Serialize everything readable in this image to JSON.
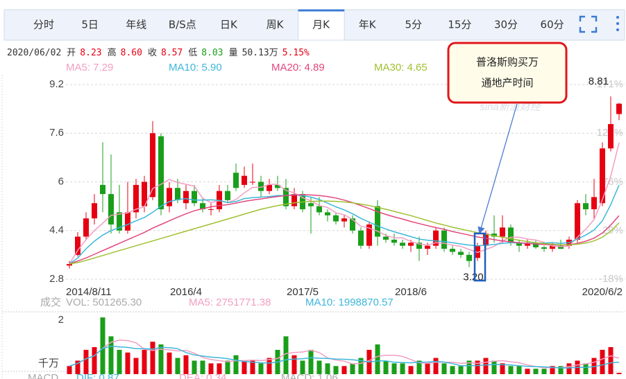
{
  "tabs": [
    {
      "label": "分时"
    },
    {
      "label": "5日"
    },
    {
      "label": "年线"
    },
    {
      "label": "B/S点"
    },
    {
      "label": "日K"
    },
    {
      "label": "周K"
    },
    {
      "label": "月K",
      "selected": true
    },
    {
      "label": "年K"
    },
    {
      "label": "5分"
    },
    {
      "label": "15分"
    },
    {
      "label": "30分"
    },
    {
      "label": "60分"
    }
  ],
  "info": {
    "date": "2020/06/02",
    "fields": [
      {
        "label": "开",
        "value": "8.23",
        "color": "#e60012"
      },
      {
        "label": "高",
        "value": "8.60",
        "color": "#e60012"
      },
      {
        "label": "收",
        "value": "8.57",
        "color": "#e60012"
      },
      {
        "label": "低",
        "value": "8.03",
        "color": "#1a9e1a"
      },
      {
        "label": "量",
        "value": "50.13万",
        "color": "#333333"
      },
      {
        "value": "5.15%",
        "color": "#e60012"
      }
    ]
  },
  "annotation": {
    "lines": [
      "普洛斯购买万",
      "通地产时间"
    ]
  },
  "macd_legend": [
    {
      "text": "MACD",
      "color": "#aaaaaa"
    },
    {
      "text": "DIF: 0.87",
      "color": "#3cb7d9"
    },
    {
      "text": "DEA: 0.34",
      "color": "#f19ec2"
    },
    {
      "text": "MACD: 1.06",
      "color": "#aaaaaa"
    }
  ],
  "chart_data": [
    {
      "type": "candlestick",
      "categories": [
        "2014/8/11",
        null,
        null,
        null,
        null,
        null,
        null,
        null,
        null,
        null,
        null,
        null,
        null,
        null,
        "2016/4",
        null,
        null,
        null,
        null,
        null,
        null,
        null,
        null,
        null,
        null,
        null,
        null,
        null,
        "2017/5",
        null,
        null,
        null,
        null,
        null,
        null,
        null,
        null,
        null,
        null,
        null,
        null,
        "2018/6",
        null,
        null,
        null,
        null,
        null,
        null,
        null,
        null,
        null,
        null,
        null,
        null,
        null,
        null,
        null,
        null,
        null,
        null,
        null,
        null,
        null,
        null,
        null,
        null,
        "2020/6/2"
      ],
      "open": [
        3.25,
        3.6,
        4.2,
        4.8,
        5.9,
        5.6,
        5.0,
        4.4,
        5.0,
        5.2,
        5.5,
        7.5,
        5.2,
        5.8,
        5.3,
        5.7,
        5.3,
        5.1,
        5.1,
        5.7,
        6.3,
        5.9,
        6.0,
        6.0,
        5.7,
        5.9,
        5.8,
        5.2,
        5.6,
        5.3,
        5.2,
        5.0,
        4.9,
        4.7,
        4.8,
        4.4,
        3.9,
        5.2,
        4.2,
        4.1,
        4.0,
        3.9,
        4.0,
        3.8,
        3.9,
        4.4,
        3.8,
        3.7,
        3.6,
        3.5,
        3.9,
        4.3,
        4.2,
        4.5,
        4.0,
        3.9,
        4.0,
        3.85,
        3.8,
        3.9,
        3.9,
        4.1,
        5.3,
        5.1,
        5.3,
        7.1,
        8.23
      ],
      "high": [
        3.4,
        4.35,
        5.0,
        5.6,
        7.3,
        6.9,
        5.9,
        6.0,
        6.1,
        6.2,
        8.0,
        7.6,
        6.0,
        6.1,
        5.9,
        5.9,
        5.5,
        5.3,
        5.9,
        5.9,
        6.6,
        6.5,
        6.6,
        6.2,
        6.1,
        6.2,
        6.1,
        5.8,
        5.7,
        5.5,
        5.5,
        5.1,
        5.0,
        4.9,
        4.9,
        4.5,
        4.7,
        5.4,
        4.3,
        4.3,
        4.1,
        4.1,
        4.2,
        4.0,
        4.5,
        4.5,
        3.9,
        3.8,
        3.7,
        4.0,
        4.4,
        4.9,
        4.9,
        4.6,
        4.1,
        4.1,
        4.1,
        3.9,
        4.0,
        4.1,
        4.2,
        5.4,
        5.6,
        6.1,
        7.3,
        8.81,
        8.6
      ],
      "low": [
        3.15,
        3.55,
        4.1,
        4.6,
        5.0,
        4.3,
        4.3,
        4.3,
        4.8,
        5.0,
        5.4,
        4.9,
        5.0,
        5.3,
        5.1,
        5.2,
        5.0,
        4.9,
        5.0,
        5.3,
        5.7,
        5.8,
        5.9,
        5.5,
        5.6,
        5.7,
        5.1,
        5.1,
        5.0,
        4.3,
        4.9,
        4.7,
        4.6,
        4.5,
        4.3,
        3.8,
        3.8,
        3.9,
        4.0,
        3.9,
        3.8,
        3.7,
        3.4,
        3.6,
        3.8,
        3.7,
        3.6,
        3.5,
        3.2,
        3.4,
        3.8,
        4.0,
        4.0,
        3.9,
        3.7,
        3.8,
        3.8,
        3.7,
        3.7,
        3.8,
        3.8,
        4.0,
        4.9,
        4.8,
        5.2,
        7.0,
        8.03
      ],
      "close": [
        3.3,
        4.2,
        4.8,
        5.3,
        5.6,
        4.6,
        4.4,
        5.0,
        5.9,
        6.0,
        7.6,
        5.1,
        5.8,
        5.4,
        5.7,
        5.3,
        5.1,
        5.1,
        5.7,
        5.4,
        5.8,
        6.2,
        6.0,
        5.7,
        5.9,
        5.8,
        5.2,
        5.6,
        5.1,
        5.2,
        5.0,
        4.9,
        4.7,
        4.8,
        4.4,
        3.9,
        4.6,
        4.2,
        4.1,
        4.0,
        3.9,
        4.0,
        3.8,
        3.9,
        4.4,
        3.8,
        3.7,
        3.6,
        3.4,
        3.9,
        4.3,
        4.2,
        4.5,
        4.0,
        3.9,
        4.0,
        3.85,
        3.8,
        3.9,
        3.8,
        4.1,
        5.3,
        5.1,
        5.5,
        7.1,
        7.9,
        8.57
      ],
      "up_color": "#e60012",
      "down_color": "#1a9e1a",
      "series": [
        {
          "name": "MA5: 7.29",
          "color": "#f19ec2",
          "values": [
            3.3,
            3.75,
            4.1,
            4.4,
            4.64,
            4.9,
            4.94,
            4.98,
            5.1,
            5.18,
            5.78,
            5.92,
            6.08,
            5.98,
            5.92,
            5.86,
            5.46,
            5.32,
            5.38,
            5.32,
            5.42,
            5.64,
            5.82,
            5.82,
            5.92,
            5.92,
            5.72,
            5.64,
            5.48,
            5.38,
            5.22,
            5.16,
            4.98,
            4.92,
            4.76,
            4.54,
            4.48,
            4.38,
            4.24,
            4.16,
            4.16,
            4.04,
            3.96,
            3.92,
            4.0,
            3.98,
            3.92,
            3.88,
            3.78,
            3.68,
            3.78,
            3.88,
            4.06,
            4.18,
            4.18,
            4.12,
            4.09,
            4.01,
            3.89,
            3.87,
            3.89,
            4.18,
            4.44,
            4.76,
            5.42,
            6.18,
            7.29
          ]
        },
        {
          "name": "MA10: 5.90",
          "color": "#3cb7d9",
          "values": [
            3.3,
            3.5,
            3.8,
            4.05,
            4.25,
            4.4,
            4.5,
            4.6,
            4.72,
            4.83,
            5.0,
            5.2,
            5.35,
            5.42,
            5.45,
            5.4,
            5.4,
            5.41,
            5.39,
            5.32,
            5.35,
            5.45,
            5.48,
            5.5,
            5.52,
            5.55,
            5.55,
            5.58,
            5.55,
            5.5,
            5.42,
            5.3,
            5.18,
            5.08,
            4.95,
            4.8,
            4.68,
            4.55,
            4.45,
            4.36,
            4.28,
            4.2,
            4.12,
            4.08,
            4.06,
            4.04,
            4.0,
            3.96,
            3.92,
            3.9,
            3.92,
            3.94,
            3.98,
            4.0,
            3.99,
            3.98,
            3.98,
            3.99,
            4.0,
            3.98,
            4.0,
            4.12,
            4.25,
            4.42,
            4.72,
            5.25,
            5.9
          ]
        },
        {
          "name": "MA20: 4.89",
          "color": "#e2477e",
          "values": [
            3.3,
            3.4,
            3.5,
            3.62,
            3.74,
            3.86,
            3.98,
            4.1,
            4.22,
            4.34,
            4.48,
            4.6,
            4.72,
            4.84,
            4.95,
            5.05,
            5.12,
            5.18,
            5.22,
            5.25,
            5.3,
            5.36,
            5.4,
            5.44,
            5.48,
            5.52,
            5.55,
            5.57,
            5.58,
            5.57,
            5.55,
            5.52,
            5.47,
            5.4,
            5.32,
            5.22,
            5.12,
            5.02,
            4.93,
            4.85,
            4.78,
            4.7,
            4.63,
            4.56,
            4.5,
            4.44,
            4.37,
            4.31,
            4.25,
            4.19,
            4.15,
            4.1,
            4.06,
            4.03,
            4.0,
            3.98,
            3.96,
            3.94,
            3.93,
            3.92,
            3.93,
            3.98,
            4.05,
            4.15,
            4.32,
            4.58,
            4.89
          ]
        },
        {
          "name": "MA30: 4.65",
          "color": "#9fc031",
          "values": [
            3.3,
            3.35,
            3.42,
            3.5,
            3.58,
            3.66,
            3.74,
            3.82,
            3.9,
            3.98,
            4.06,
            4.14,
            4.22,
            4.3,
            4.38,
            4.46,
            4.54,
            4.62,
            4.7,
            4.78,
            4.86,
            4.94,
            5.02,
            5.1,
            5.16,
            5.22,
            5.27,
            5.31,
            5.34,
            5.36,
            5.37,
            5.37,
            5.36,
            5.34,
            5.31,
            5.27,
            5.22,
            5.16,
            5.1,
            5.03,
            4.96,
            4.89,
            4.81,
            4.73,
            4.65,
            4.58,
            4.51,
            4.45,
            4.39,
            4.33,
            4.28,
            4.23,
            4.18,
            4.13,
            4.08,
            4.04,
            4.0,
            3.97,
            3.95,
            3.93,
            3.93,
            3.95,
            3.99,
            4.06,
            4.18,
            4.38,
            4.65
          ]
        }
      ],
      "ylim": [
        2.8,
        9.2
      ],
      "yticks": [
        2.8,
        4.4,
        6,
        7.6,
        9.2
      ],
      "y2lim": [
        -18,
        171
      ],
      "y2ticks": [
        {
          "value": -18,
          "label": "-18%"
        },
        {
          "value": 29,
          "label": "29%"
        },
        {
          "value": 76,
          "label": "76%"
        },
        {
          "value": 124,
          "label": "124%"
        },
        {
          "value": 171,
          "label": "171%"
        }
      ],
      "grid": true,
      "high_label": {
        "value": 8.81,
        "label": "8.81"
      },
      "low_label": {
        "value": 3.2,
        "label": "3.20"
      },
      "watermark": "sina新浪财经"
    },
    {
      "type": "bar",
      "title": "成交",
      "label": "VOL: 501265.30",
      "unit_label": "千万",
      "values": [
        0.3,
        0.5,
        0.9,
        1.0,
        2.1,
        1.4,
        0.9,
        0.8,
        0.6,
        0.9,
        1.2,
        1.1,
        0.8,
        0.6,
        0.7,
        0.5,
        0.5,
        0.4,
        0.4,
        0.5,
        0.7,
        0.5,
        0.5,
        0.4,
        0.6,
        0.9,
        1.4,
        0.7,
        0.5,
        0.9,
        0.5,
        0.4,
        0.3,
        0.3,
        0.4,
        0.6,
        0.9,
        1.1,
        0.5,
        0.4,
        0.4,
        0.3,
        0.5,
        0.4,
        0.6,
        0.4,
        0.3,
        0.3,
        0.5,
        0.5,
        0.6,
        0.5,
        0.4,
        0.3,
        0.3,
        0.2,
        0.2,
        0.2,
        0.3,
        0.3,
        0.4,
        0.5,
        0.4,
        0.6,
        0.9,
        1.0,
        0.05
      ],
      "up_color": "#e60012",
      "down_color": "#1a9e1a",
      "series": [
        {
          "name": "MA5: 2751771.38",
          "color": "#f19ec2",
          "values": [
            0.3,
            0.4,
            0.57,
            0.68,
            0.96,
            1.18,
            1.26,
            1.24,
            1.16,
            0.92,
            0.88,
            0.92,
            0.9,
            0.86,
            0.88,
            0.78,
            0.62,
            0.54,
            0.5,
            0.46,
            0.5,
            0.5,
            0.52,
            0.5,
            0.54,
            0.58,
            0.76,
            0.8,
            0.82,
            0.88,
            0.8,
            0.6,
            0.52,
            0.48,
            0.38,
            0.4,
            0.5,
            0.66,
            0.7,
            0.7,
            0.66,
            0.54,
            0.42,
            0.4,
            0.44,
            0.44,
            0.44,
            0.4,
            0.42,
            0.4,
            0.44,
            0.48,
            0.5,
            0.46,
            0.42,
            0.34,
            0.28,
            0.24,
            0.24,
            0.24,
            0.28,
            0.34,
            0.38,
            0.44,
            0.56,
            0.68,
            0.59
          ]
        },
        {
          "name": "MA10: 1998870.57",
          "color": "#3cb7d9",
          "values": [
            0.3,
            0.4,
            0.57,
            0.68,
            0.96,
            1.03,
            1.01,
            0.99,
            0.94,
            0.94,
            0.93,
            0.99,
            0.98,
            0.94,
            0.8,
            0.71,
            0.67,
            0.63,
            0.61,
            0.57,
            0.52,
            0.47,
            0.44,
            0.42,
            0.41,
            0.45,
            0.53,
            0.56,
            0.57,
            0.61,
            0.59,
            0.58,
            0.56,
            0.55,
            0.53,
            0.5,
            0.45,
            0.49,
            0.49,
            0.44,
            0.43,
            0.42,
            0.44,
            0.45,
            0.47,
            0.45,
            0.39,
            0.31,
            0.31,
            0.32,
            0.34,
            0.36,
            0.35,
            0.34,
            0.31,
            0.29,
            0.28,
            0.27,
            0.25,
            0.23,
            0.23,
            0.25,
            0.25,
            0.28,
            0.34,
            0.42,
            0.44
          ]
        }
      ],
      "ylim": [
        0,
        2.2
      ],
      "yticks": [
        2
      ]
    }
  ]
}
